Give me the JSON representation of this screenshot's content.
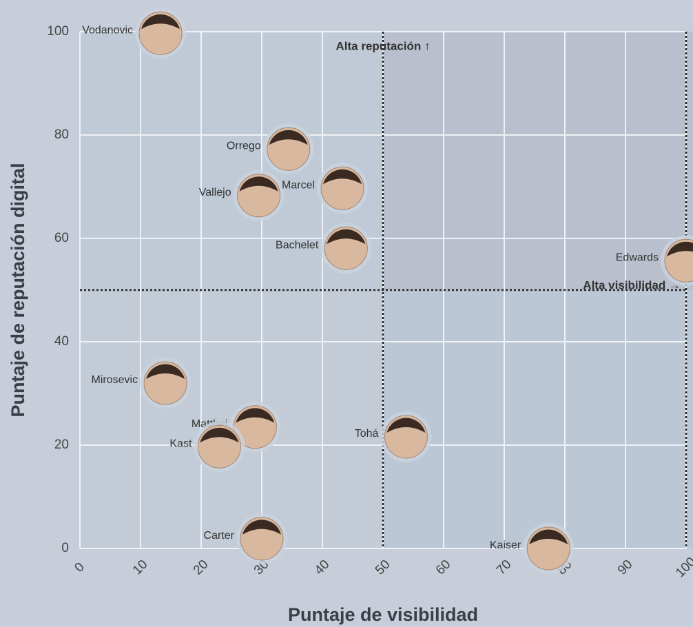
{
  "chart_data": {
    "type": "scatter",
    "x_label": "Puntaje de visibilidad",
    "y_label": "Puntaje de reputación digital",
    "xlim": [
      0,
      100
    ],
    "ylim": [
      0,
      100
    ],
    "xticks": [
      0,
      10,
      20,
      30,
      40,
      50,
      60,
      70,
      80,
      90,
      100
    ],
    "yticks": [
      0,
      20,
      40,
      60,
      80,
      100
    ],
    "grid": true,
    "x_threshold": 50,
    "y_threshold": 50,
    "annotations": [
      "Alta reputación ↑",
      "Alta visibilidad →"
    ],
    "points": [
      {
        "name": "Vodanovic",
        "x": 13.3,
        "y": 99.7
      },
      {
        "name": "Orrego",
        "x": 34.4,
        "y": 77.3
      },
      {
        "name": "Vallejo",
        "x": 29.5,
        "y": 68.3
      },
      {
        "name": "Marcel",
        "x": 43.3,
        "y": 69.7
      },
      {
        "name": "Bachelet",
        "x": 43.9,
        "y": 58.1
      },
      {
        "name": "Edwards",
        "x": 100,
        "y": 55.7
      },
      {
        "name": "Mirosevic",
        "x": 14.1,
        "y": 32
      },
      {
        "name": "Matthei",
        "x": 28.9,
        "y": 23.5
      },
      {
        "name": "Kast",
        "x": 23,
        "y": 19.7
      },
      {
        "name": "Tohá",
        "x": 53.8,
        "y": 21.6
      },
      {
        "name": "Carter",
        "x": 30,
        "y": 1.9
      },
      {
        "name": "Kaiser",
        "x": 77.3,
        "y": 0
      }
    ]
  }
}
